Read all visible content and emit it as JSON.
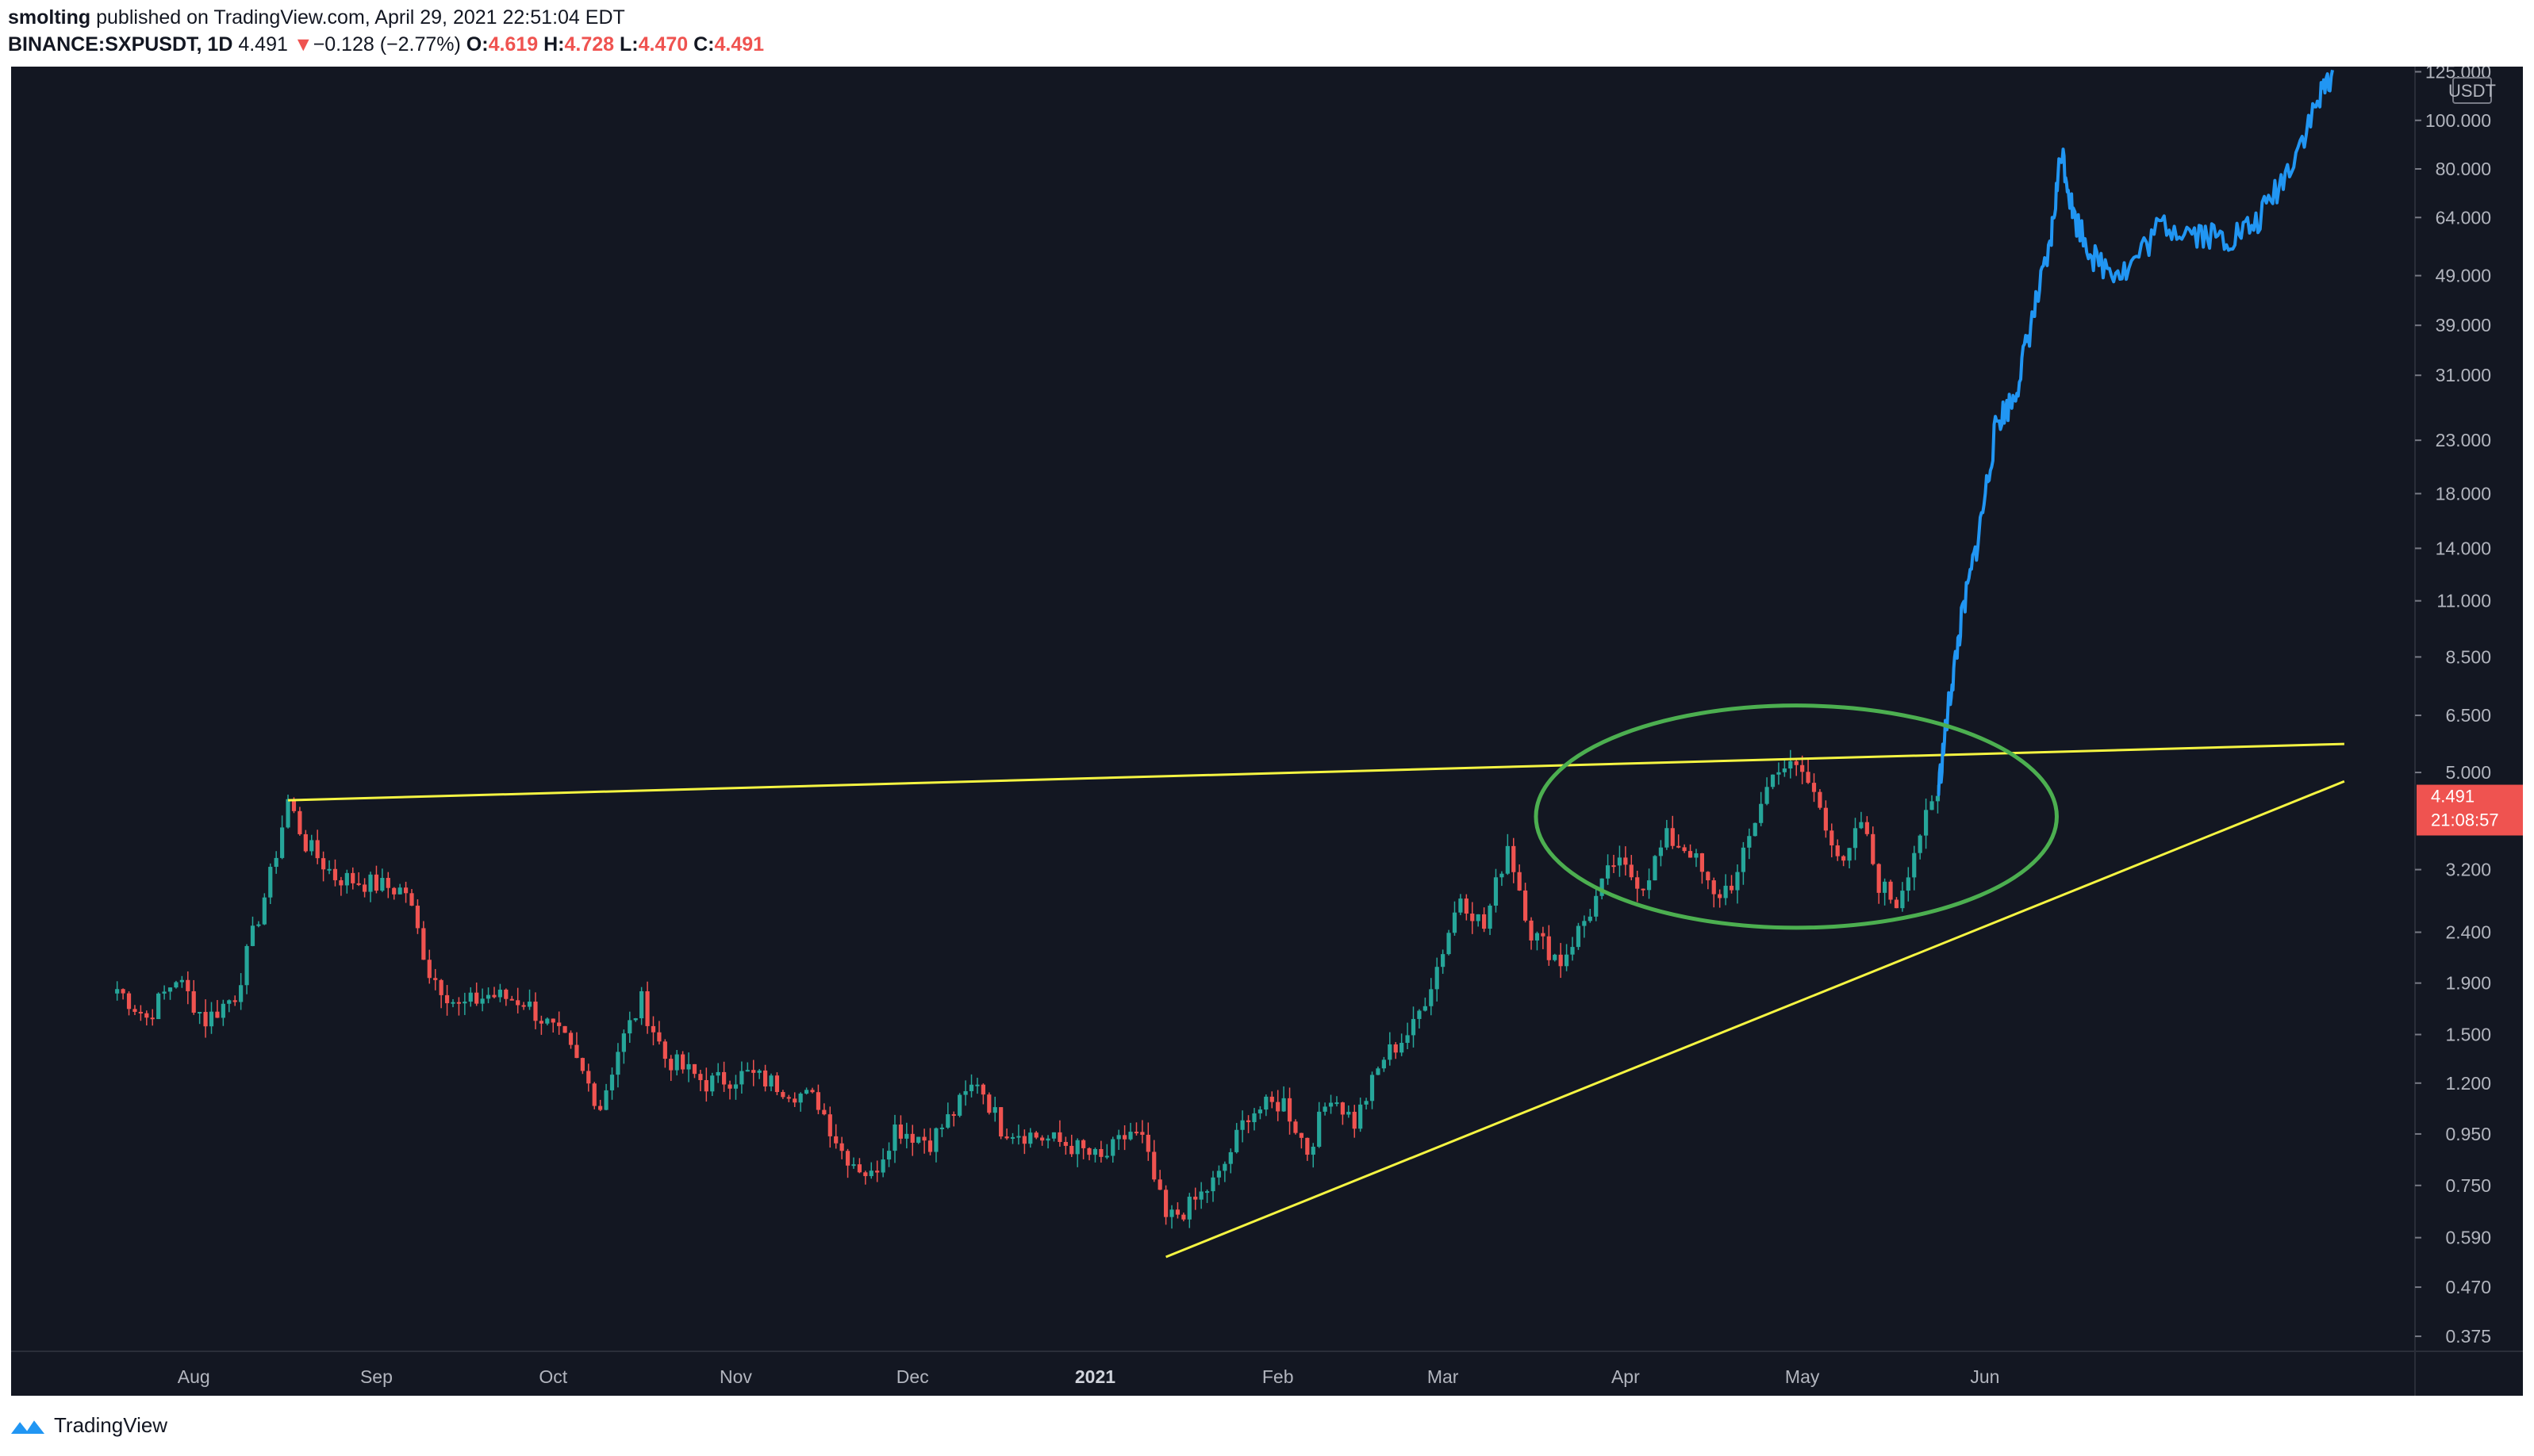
{
  "header": {
    "author": "smolting",
    "published": "published on TradingView.com, April 29, 2021 22:51:04 EDT",
    "symbol": "BINANCE:SXPUSDT, 1D",
    "last": "4.491",
    "change_arrow": "▼",
    "change": "−0.128 (−2.77%)",
    "open_label": "O:",
    "open": "4.619",
    "high_label": "H:",
    "high": "4.728",
    "low_label": "L:",
    "low": "4.470",
    "close_label": "C:",
    "close": "4.491"
  },
  "footer": {
    "brand": "TradingView",
    "icon": "tradingview-logo-icon"
  },
  "colors": {
    "background": "#131722",
    "up": "#26a69a",
    "down": "#ef5350",
    "projection": "#2196f3",
    "trendline": "#f5f542",
    "circle": "#4caf50",
    "price_badge": "#ef5350"
  },
  "chart_data": {
    "type": "candlestick",
    "yscale": "log",
    "ylim": [
      0.35,
      128
    ],
    "currency": "USDT",
    "y_ticks": [
      "125.000",
      "100.000",
      "80.000",
      "64.000",
      "49.000",
      "39.000",
      "31.000",
      "23.000",
      "18.000",
      "14.000",
      "11.000",
      "8.500",
      "6.500",
      "5.000",
      "3.200",
      "2.400",
      "1.900",
      "1.500",
      "1.200",
      "0.950",
      "0.750",
      "0.590",
      "0.470",
      "0.375"
    ],
    "x_ticks": [
      {
        "label": "Aug",
        "date": "2020-08-01"
      },
      {
        "label": "Sep",
        "date": "2020-09-01"
      },
      {
        "label": "Oct",
        "date": "2020-10-01"
      },
      {
        "label": "Nov",
        "date": "2020-11-01"
      },
      {
        "label": "Dec",
        "date": "2020-12-01"
      },
      {
        "label": "2021",
        "date": "2021-01-01",
        "bold": true
      },
      {
        "label": "Feb",
        "date": "2021-02-01"
      },
      {
        "label": "Mar",
        "date": "2021-03-01"
      },
      {
        "label": "Apr",
        "date": "2021-04-01"
      },
      {
        "label": "May",
        "date": "2021-05-01"
      },
      {
        "label": "Jun",
        "date": "2021-06-01"
      }
    ],
    "last_price_badge": {
      "price": "4.491",
      "countdown": "21:08:57"
    },
    "candle_anchors": [
      {
        "date": "2020-07-19",
        "close": 1.85
      },
      {
        "date": "2020-07-24",
        "close": 1.62
      },
      {
        "date": "2020-07-29",
        "close": 1.95
      },
      {
        "date": "2020-08-03",
        "close": 1.6
      },
      {
        "date": "2020-08-08",
        "close": 1.8
      },
      {
        "date": "2020-08-14",
        "close": 3.1
      },
      {
        "date": "2020-08-17",
        "close": 4.4
      },
      {
        "date": "2020-08-20",
        "close": 3.6
      },
      {
        "date": "2020-08-25",
        "close": 3.1
      },
      {
        "date": "2020-08-31",
        "close": 3.0
      },
      {
        "date": "2020-09-06",
        "close": 2.9
      },
      {
        "date": "2020-09-10",
        "close": 2.0
      },
      {
        "date": "2020-09-15",
        "close": 1.7
      },
      {
        "date": "2020-09-20",
        "close": 1.8
      },
      {
        "date": "2020-09-26",
        "close": 1.75
      },
      {
        "date": "2020-10-03",
        "close": 1.45
      },
      {
        "date": "2020-10-09",
        "close": 1.08
      },
      {
        "date": "2020-10-12",
        "close": 1.4
      },
      {
        "date": "2020-10-16",
        "close": 1.75
      },
      {
        "date": "2020-10-20",
        "close": 1.35
      },
      {
        "date": "2020-10-27",
        "close": 1.2
      },
      {
        "date": "2020-11-03",
        "close": 1.25
      },
      {
        "date": "2020-11-09",
        "close": 1.18
      },
      {
        "date": "2020-11-15",
        "close": 1.1
      },
      {
        "date": "2020-11-19",
        "close": 0.88
      },
      {
        "date": "2020-11-24",
        "close": 0.78
      },
      {
        "date": "2020-11-28",
        "close": 0.98
      },
      {
        "date": "2020-12-04",
        "close": 0.92
      },
      {
        "date": "2020-12-08",
        "close": 1.05
      },
      {
        "date": "2020-12-12",
        "close": 1.22
      },
      {
        "date": "2020-12-16",
        "close": 0.98
      },
      {
        "date": "2020-12-22",
        "close": 0.94
      },
      {
        "date": "2020-12-28",
        "close": 0.9
      },
      {
        "date": "2021-01-02",
        "close": 0.84
      },
      {
        "date": "2021-01-07",
        "close": 0.96
      },
      {
        "date": "2021-01-09",
        "close": 0.92
      },
      {
        "date": "2021-01-13",
        "close": 0.64
      },
      {
        "date": "2021-01-17",
        "close": 0.68
      },
      {
        "date": "2021-01-22",
        "close": 0.78
      },
      {
        "date": "2021-01-27",
        "close": 1.05
      },
      {
        "date": "2021-02-02",
        "close": 1.1
      },
      {
        "date": "2021-02-06",
        "close": 0.88
      },
      {
        "date": "2021-02-10",
        "close": 1.15
      },
      {
        "date": "2021-02-14",
        "close": 1.0
      },
      {
        "date": "2021-02-19",
        "close": 1.35
      },
      {
        "date": "2021-02-24",
        "close": 1.55
      },
      {
        "date": "2021-02-28",
        "close": 2.05
      },
      {
        "date": "2021-03-04",
        "close": 2.85
      },
      {
        "date": "2021-03-08",
        "close": 2.45
      },
      {
        "date": "2021-03-12",
        "close": 3.6
      },
      {
        "date": "2021-03-16",
        "close": 2.4
      },
      {
        "date": "2021-03-21",
        "close": 2.1
      },
      {
        "date": "2021-03-26",
        "close": 2.65
      },
      {
        "date": "2021-03-30",
        "close": 3.3
      },
      {
        "date": "2021-04-04",
        "close": 3.0
      },
      {
        "date": "2021-04-08",
        "close": 3.7
      },
      {
        "date": "2021-04-12",
        "close": 3.5
      },
      {
        "date": "2021-04-16",
        "close": 2.8
      },
      {
        "date": "2021-04-20",
        "close": 3.1
      },
      {
        "date": "2021-04-24",
        "close": 4.4
      },
      {
        "date": "2021-04-27",
        "close": 5.2
      },
      {
        "date": "2021-05-01",
        "close": 5.0
      },
      {
        "date": "2021-05-04",
        "close": 4.3
      },
      {
        "date": "2021-05-08",
        "close": 3.2
      },
      {
        "date": "2021-05-11",
        "close": 4.0
      },
      {
        "date": "2021-05-14",
        "close": 3.0
      },
      {
        "date": "2021-05-17",
        "close": 2.75
      },
      {
        "date": "2021-05-21",
        "close": 3.8
      },
      {
        "date": "2021-05-24",
        "close": 4.49
      }
    ],
    "projection_path": [
      {
        "date": "2021-05-24",
        "price": 4.5
      },
      {
        "date": "2021-05-26",
        "price": 7.0
      },
      {
        "date": "2021-05-28",
        "price": 10.0
      },
      {
        "date": "2021-05-31",
        "price": 15.0
      },
      {
        "date": "2021-06-03",
        "price": 25.0
      },
      {
        "date": "2021-06-06",
        "price": 28.0
      },
      {
        "date": "2021-06-09",
        "price": 40.0
      },
      {
        "date": "2021-06-12",
        "price": 55.0
      },
      {
        "date": "2021-06-14",
        "price": 88.0
      },
      {
        "date": "2021-06-16",
        "price": 65.0
      },
      {
        "date": "2021-06-20",
        "price": 52.0
      },
      {
        "date": "2021-06-25",
        "price": 50.0
      },
      {
        "date": "2021-07-01",
        "price": 62.0
      },
      {
        "date": "2021-07-07",
        "price": 60.0
      },
      {
        "date": "2021-07-12",
        "price": 58.0
      },
      {
        "date": "2021-07-17",
        "price": 62.0
      },
      {
        "date": "2021-07-22",
        "price": 78.0
      },
      {
        "date": "2021-07-27",
        "price": 105.0
      },
      {
        "date": "2021-07-30",
        "price": 126.0
      }
    ],
    "trendlines": [
      {
        "name": "resistance",
        "from": {
          "date": "2020-08-17",
          "price": 4.4
        },
        "to": {
          "date": "2021-08-01",
          "price": 5.7
        }
      },
      {
        "name": "support",
        "from": {
          "date": "2021-01-13",
          "price": 0.54
        },
        "to": {
          "date": "2021-08-01",
          "price": 4.8
        }
      }
    ],
    "annotation_ellipse": {
      "center": {
        "date": "2021-04-30",
        "price": 3.55
      },
      "span_days": "17",
      "price_top": 6.8,
      "price_bottom": 2.45
    }
  }
}
